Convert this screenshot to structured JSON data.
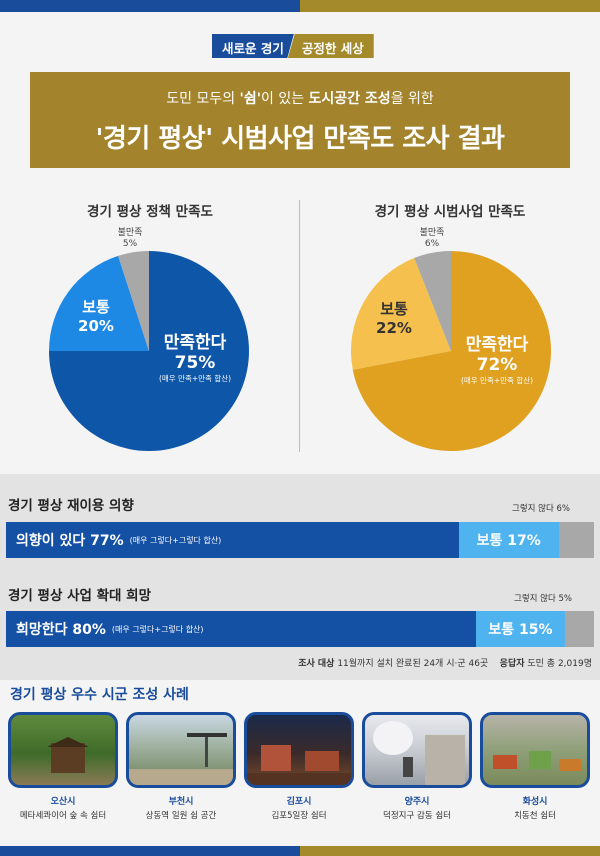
{
  "tagline": {
    "left": "새로운 경기",
    "right": "공정한 세상"
  },
  "header": {
    "sub_pre": "도민 모두의 ",
    "sub_bold1": "'쉼'",
    "sub_mid": "이 있는 ",
    "sub_bold2": "도시공간 조성",
    "sub_post": "을 위한",
    "title": "'경기 평상' 시범사업 만족도 조사 결과"
  },
  "colors": {
    "blue": "#1a4c9c",
    "gold": "#a3832b",
    "light_blue": "#1e88e5",
    "yellow": "#f5c04d",
    "amber": "#e0a020",
    "grey": "#a8a8a8",
    "sky": "#4fb3f0"
  },
  "chart_data": [
    {
      "type": "pie",
      "title": "경기 평상 정책 만족도",
      "categories": [
        "만족한다",
        "보통",
        "불만족"
      ],
      "values": [
        75,
        20,
        5
      ],
      "colors": [
        "#0e56a8",
        "#1e88e5",
        "#a8a8a8"
      ],
      "labels": {
        "main": "만족한다",
        "main_value": "75%",
        "main_note": "(매우 만족+만족 합산)",
        "mid": "보통",
        "mid_value": "20%",
        "small": "불만족",
        "small_value": "5%"
      }
    },
    {
      "type": "pie",
      "title": "경기 평상 시범사업 만족도",
      "categories": [
        "만족한다",
        "보통",
        "불만족"
      ],
      "values": [
        72,
        22,
        6
      ],
      "colors": [
        "#e0a020",
        "#f5c04d",
        "#a8a8a8"
      ],
      "labels": {
        "main": "만족한다",
        "main_value": "72%",
        "main_note": "(매우 만족+만족 합산)",
        "mid": "보통",
        "mid_value": "22%",
        "small": "불만족",
        "small_value": "6%"
      }
    },
    {
      "type": "bar",
      "title": "경기 평상 재이용 의향",
      "categories": [
        "의향이 있다",
        "보통",
        "그렇지 않다"
      ],
      "values": [
        77,
        17,
        6
      ],
      "labels": {
        "a": "의향이 있다 77%",
        "a_note": "(매우 그렇다+그렇다 합산)",
        "b": "보통 17%",
        "c": "그렇지 않다 6%"
      }
    },
    {
      "type": "bar",
      "title": "경기 평상 사업 확대 희망",
      "categories": [
        "희망한다",
        "보통",
        "그렇지 않다"
      ],
      "values": [
        80,
        15,
        5
      ],
      "labels": {
        "a": "희망한다 80%",
        "a_note": "(매우 그렇다+그렇다 합산)",
        "b": "보통 15%",
        "c": "그렇지 않다 5%"
      }
    }
  ],
  "survey": {
    "target_label": "조사 대상",
    "target_value": "11월까지 설치 완료된 24개 시·군 46곳",
    "resp_label": "응답자",
    "resp_value": "도민 총 2,019명"
  },
  "cases": {
    "title": "경기 평상 우수 시군 조성 사례",
    "items": [
      {
        "city": "오산시",
        "place": "메타세콰이어 숲 속 쉼터"
      },
      {
        "city": "부천시",
        "place": "상동역 일원 쉼 공간"
      },
      {
        "city": "김포시",
        "place": "김포5일장 쉼터"
      },
      {
        "city": "양주시",
        "place": "덕정지구 감동 쉼터"
      },
      {
        "city": "화성시",
        "place": "치동천 쉼터"
      }
    ]
  }
}
